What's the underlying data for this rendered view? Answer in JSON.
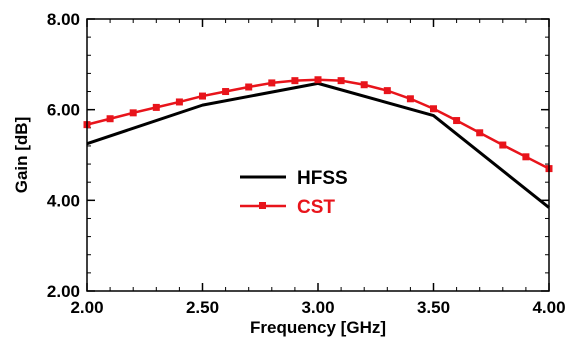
{
  "chart_data": {
    "type": "line",
    "xlabel": "Frequency [GHz]",
    "ylabel": "Gain [dB]",
    "xlim": [
      2.0,
      4.0
    ],
    "ylim": [
      2.0,
      8.0
    ],
    "x_ticks": [
      2.0,
      2.5,
      3.0,
      3.5,
      4.0
    ],
    "x_tick_labels": [
      "2.00",
      "2.50",
      "3.00",
      "3.50",
      "4.00"
    ],
    "y_ticks": [
      2.0,
      4.0,
      6.0,
      8.0
    ],
    "y_tick_labels": [
      "2.00",
      "4.00",
      "6.00",
      "8.00"
    ],
    "grid": false,
    "legend_position": "center",
    "series": [
      {
        "name": "HFSS",
        "color": "#000000",
        "marker": "none",
        "x": [
          2.0,
          2.5,
          3.0,
          3.5,
          4.0
        ],
        "y": [
          5.25,
          6.1,
          6.58,
          5.87,
          3.84
        ]
      },
      {
        "name": "CST",
        "color": "#e8141b",
        "marker": "square",
        "x": [
          2.0,
          2.1,
          2.2,
          2.3,
          2.4,
          2.5,
          2.6,
          2.7,
          2.8,
          2.9,
          3.0,
          3.1,
          3.2,
          3.3,
          3.4,
          3.5,
          3.6,
          3.7,
          3.8,
          3.9,
          4.0
        ],
        "y": [
          5.67,
          5.8,
          5.93,
          6.05,
          6.17,
          6.3,
          6.4,
          6.5,
          6.59,
          6.64,
          6.66,
          6.64,
          6.55,
          6.42,
          6.24,
          6.02,
          5.76,
          5.49,
          5.22,
          4.96,
          4.7
        ]
      }
    ]
  }
}
